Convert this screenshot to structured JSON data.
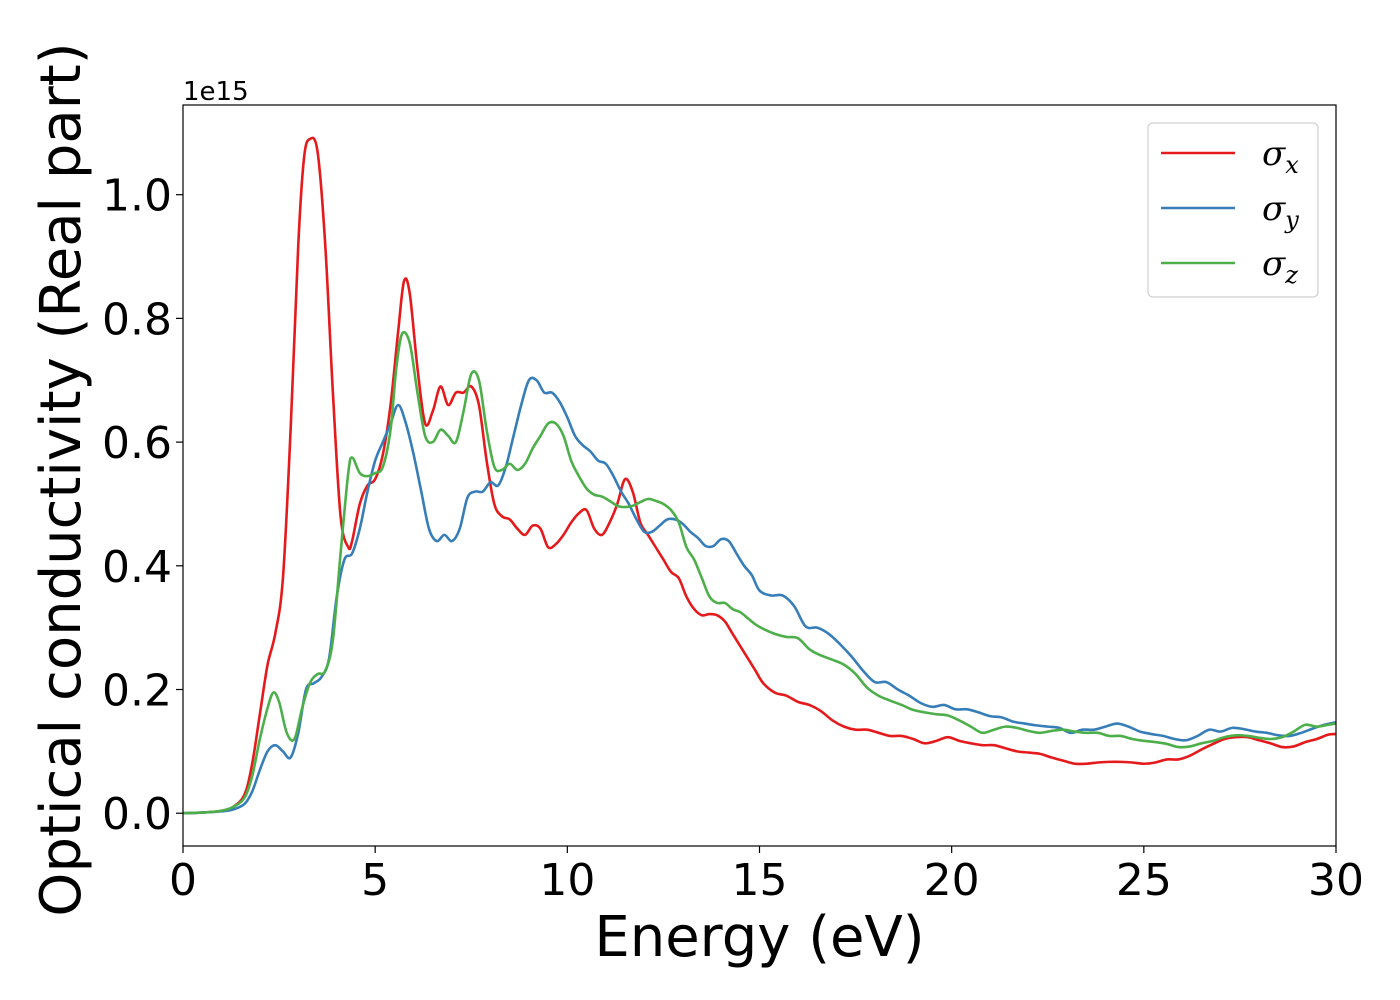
{
  "chart_data": {
    "type": "line",
    "title": "",
    "xlabel": "Energy (eV)",
    "ylabel": "Optical conductivity (Real part)",
    "y_offset_label": "1e15",
    "xlim": [
      0,
      30
    ],
    "ylim": [
      -0.053,
      1.145
    ],
    "y_scale": 1000000000000000.0,
    "x_ticks": [
      0,
      5,
      10,
      15,
      20,
      25,
      30
    ],
    "x_tick_labels": [
      "0",
      "5",
      "10",
      "15",
      "20",
      "25",
      "30"
    ],
    "y_ticks": [
      0.0,
      0.2,
      0.4,
      0.6,
      0.8,
      1.0
    ],
    "y_tick_labels": [
      "0.0",
      "0.2",
      "0.4",
      "0.6",
      "0.8",
      "1.0"
    ],
    "grid": false,
    "legend_position": "top-right",
    "series": [
      {
        "name": "σx",
        "symbol": "σ",
        "subscript": "x",
        "color": "#e41a1c",
        "x": [
          0,
          0.5,
          1.0,
          1.3,
          1.6,
          1.8,
          2.0,
          2.2,
          2.4,
          2.6,
          2.8,
          3.0,
          3.15,
          3.3,
          3.5,
          3.7,
          3.9,
          4.1,
          4.3,
          4.4,
          4.6,
          4.8,
          5.0,
          5.2,
          5.4,
          5.6,
          5.75,
          5.9,
          6.1,
          6.3,
          6.5,
          6.7,
          6.9,
          7.1,
          7.3,
          7.5,
          7.7,
          7.9,
          8.1,
          8.3,
          8.5,
          8.7,
          8.9,
          9.1,
          9.3,
          9.5,
          9.7,
          9.9,
          10.1,
          10.3,
          10.5,
          10.7,
          10.9,
          11.1,
          11.3,
          11.5,
          11.7,
          11.9,
          12.1,
          12.3,
          12.5,
          12.7,
          12.9,
          13.1,
          13.3,
          13.5,
          13.7,
          13.9,
          14.1,
          14.3,
          14.5,
          14.7,
          14.9,
          15.1,
          15.4,
          15.7,
          16.0,
          16.3,
          16.6,
          16.9,
          17.2,
          17.5,
          17.8,
          18.1,
          18.4,
          18.7,
          19.0,
          19.3,
          19.6,
          19.9,
          20.2,
          20.5,
          20.8,
          21.1,
          21.4,
          21.7,
          22.0,
          22.3,
          22.6,
          22.9,
          23.2,
          23.5,
          23.8,
          24.1,
          24.4,
          24.7,
          25.0,
          25.3,
          25.6,
          25.9,
          26.2,
          26.5,
          26.8,
          27.1,
          27.4,
          27.7,
          28.0,
          28.3,
          28.6,
          28.9,
          29.2,
          29.5,
          29.8,
          30.0
        ],
        "y": [
          0.0,
          0.001,
          0.004,
          0.01,
          0.03,
          0.08,
          0.16,
          0.24,
          0.29,
          0.38,
          0.62,
          0.92,
          1.06,
          1.09,
          1.07,
          0.92,
          0.68,
          0.48,
          0.43,
          0.44,
          0.5,
          0.53,
          0.54,
          0.58,
          0.66,
          0.78,
          0.86,
          0.84,
          0.72,
          0.63,
          0.65,
          0.69,
          0.66,
          0.68,
          0.68,
          0.69,
          0.66,
          0.57,
          0.5,
          0.48,
          0.475,
          0.46,
          0.45,
          0.465,
          0.46,
          0.43,
          0.435,
          0.45,
          0.47,
          0.485,
          0.49,
          0.46,
          0.45,
          0.47,
          0.5,
          0.54,
          0.52,
          0.47,
          0.45,
          0.43,
          0.41,
          0.39,
          0.38,
          0.35,
          0.33,
          0.32,
          0.322,
          0.32,
          0.31,
          0.29,
          0.27,
          0.25,
          0.23,
          0.21,
          0.195,
          0.19,
          0.18,
          0.175,
          0.165,
          0.15,
          0.14,
          0.135,
          0.135,
          0.13,
          0.125,
          0.125,
          0.12,
          0.113,
          0.117,
          0.123,
          0.117,
          0.113,
          0.11,
          0.11,
          0.105,
          0.1,
          0.098,
          0.096,
          0.09,
          0.085,
          0.08,
          0.08,
          0.082,
          0.083,
          0.083,
          0.082,
          0.08,
          0.082,
          0.087,
          0.087,
          0.093,
          0.103,
          0.112,
          0.12,
          0.123,
          0.123,
          0.118,
          0.113,
          0.107,
          0.108,
          0.115,
          0.12,
          0.127,
          0.128
        ]
      },
      {
        "name": "σy",
        "symbol": "σ",
        "subscript": "y",
        "color": "#377eb8",
        "x": [
          0,
          0.5,
          1.0,
          1.3,
          1.6,
          1.8,
          2.0,
          2.2,
          2.4,
          2.6,
          2.8,
          3.0,
          3.2,
          3.4,
          3.6,
          3.8,
          4.0,
          4.2,
          4.4,
          4.6,
          4.8,
          5.0,
          5.2,
          5.4,
          5.6,
          5.8,
          6.0,
          6.2,
          6.4,
          6.6,
          6.8,
          7.0,
          7.2,
          7.4,
          7.6,
          7.8,
          8.0,
          8.2,
          8.4,
          8.6,
          8.8,
          9.0,
          9.2,
          9.4,
          9.6,
          9.8,
          10.0,
          10.2,
          10.4,
          10.6,
          10.8,
          11.0,
          11.2,
          11.4,
          11.6,
          11.8,
          12.0,
          12.2,
          12.4,
          12.6,
          12.8,
          13.0,
          13.2,
          13.4,
          13.6,
          13.8,
          14.0,
          14.2,
          14.4,
          14.6,
          14.8,
          15.0,
          15.3,
          15.6,
          15.9,
          16.2,
          16.5,
          16.8,
          17.1,
          17.4,
          17.7,
          18.0,
          18.3,
          18.6,
          18.9,
          19.2,
          19.5,
          19.8,
          20.1,
          20.4,
          20.7,
          21.0,
          21.3,
          21.6,
          21.9,
          22.2,
          22.5,
          22.8,
          23.1,
          23.4,
          23.7,
          24.0,
          24.3,
          24.6,
          24.9,
          25.2,
          25.5,
          25.8,
          26.1,
          26.4,
          26.7,
          27.0,
          27.3,
          27.6,
          27.9,
          28.2,
          28.5,
          28.8,
          29.1,
          29.4,
          29.7,
          30.0
        ],
        "y": [
          0.0,
          0.001,
          0.003,
          0.006,
          0.015,
          0.035,
          0.07,
          0.1,
          0.11,
          0.1,
          0.09,
          0.13,
          0.2,
          0.21,
          0.22,
          0.25,
          0.35,
          0.41,
          0.42,
          0.46,
          0.52,
          0.57,
          0.6,
          0.63,
          0.66,
          0.63,
          0.58,
          0.52,
          0.46,
          0.44,
          0.45,
          0.44,
          0.46,
          0.51,
          0.52,
          0.52,
          0.535,
          0.53,
          0.56,
          0.61,
          0.66,
          0.7,
          0.7,
          0.68,
          0.68,
          0.665,
          0.64,
          0.61,
          0.595,
          0.585,
          0.57,
          0.565,
          0.545,
          0.52,
          0.5,
          0.475,
          0.455,
          0.455,
          0.465,
          0.475,
          0.475,
          0.468,
          0.455,
          0.445,
          0.432,
          0.432,
          0.443,
          0.44,
          0.42,
          0.4,
          0.385,
          0.36,
          0.352,
          0.352,
          0.335,
          0.302,
          0.3,
          0.29,
          0.273,
          0.253,
          0.23,
          0.212,
          0.212,
          0.2,
          0.19,
          0.178,
          0.172,
          0.175,
          0.168,
          0.168,
          0.163,
          0.157,
          0.155,
          0.148,
          0.145,
          0.142,
          0.14,
          0.138,
          0.13,
          0.135,
          0.135,
          0.14,
          0.145,
          0.14,
          0.132,
          0.128,
          0.125,
          0.12,
          0.118,
          0.125,
          0.135,
          0.132,
          0.138,
          0.136,
          0.132,
          0.13,
          0.126,
          0.125,
          0.13,
          0.137,
          0.143,
          0.147
        ]
      },
      {
        "name": "σz",
        "symbol": "σ",
        "subscript": "z",
        "color": "#4daf4a",
        "x": [
          0,
          0.5,
          1.0,
          1.3,
          1.6,
          1.8,
          2.0,
          2.2,
          2.35,
          2.5,
          2.7,
          2.9,
          3.1,
          3.3,
          3.5,
          3.7,
          3.9,
          4.1,
          4.3,
          4.4,
          4.6,
          4.8,
          5.0,
          5.2,
          5.4,
          5.55,
          5.7,
          5.9,
          6.1,
          6.3,
          6.5,
          6.7,
          6.9,
          7.1,
          7.3,
          7.5,
          7.7,
          7.9,
          8.1,
          8.3,
          8.5,
          8.7,
          8.9,
          9.1,
          9.3,
          9.5,
          9.7,
          9.9,
          10.1,
          10.3,
          10.5,
          10.7,
          10.9,
          11.1,
          11.3,
          11.5,
          11.7,
          11.9,
          12.1,
          12.3,
          12.5,
          12.7,
          12.9,
          13.1,
          13.3,
          13.5,
          13.7,
          13.9,
          14.1,
          14.3,
          14.5,
          14.7,
          14.9,
          15.1,
          15.4,
          15.7,
          16.0,
          16.3,
          16.6,
          16.9,
          17.2,
          17.5,
          17.8,
          18.1,
          18.4,
          18.7,
          19.0,
          19.3,
          19.6,
          19.9,
          20.2,
          20.5,
          20.8,
          21.1,
          21.4,
          21.7,
          22.0,
          22.3,
          22.6,
          22.9,
          23.2,
          23.5,
          23.8,
          24.1,
          24.4,
          24.7,
          25.0,
          25.3,
          25.6,
          25.9,
          26.2,
          26.5,
          26.8,
          27.1,
          27.4,
          27.7,
          28.0,
          28.3,
          28.6,
          28.9,
          29.2,
          29.5,
          29.8,
          30.0
        ],
        "y": [
          0.0,
          0.001,
          0.004,
          0.01,
          0.025,
          0.06,
          0.12,
          0.17,
          0.195,
          0.18,
          0.13,
          0.12,
          0.17,
          0.21,
          0.225,
          0.23,
          0.28,
          0.42,
          0.55,
          0.575,
          0.55,
          0.545,
          0.55,
          0.56,
          0.62,
          0.72,
          0.775,
          0.76,
          0.68,
          0.61,
          0.6,
          0.62,
          0.61,
          0.6,
          0.65,
          0.71,
          0.7,
          0.62,
          0.56,
          0.555,
          0.565,
          0.555,
          0.565,
          0.59,
          0.61,
          0.63,
          0.63,
          0.61,
          0.57,
          0.545,
          0.525,
          0.515,
          0.512,
          0.505,
          0.497,
          0.495,
          0.497,
          0.503,
          0.508,
          0.505,
          0.5,
          0.49,
          0.47,
          0.43,
          0.41,
          0.38,
          0.35,
          0.34,
          0.34,
          0.33,
          0.325,
          0.315,
          0.305,
          0.298,
          0.29,
          0.285,
          0.283,
          0.265,
          0.255,
          0.248,
          0.24,
          0.225,
          0.203,
          0.19,
          0.182,
          0.175,
          0.167,
          0.163,
          0.16,
          0.158,
          0.15,
          0.14,
          0.13,
          0.135,
          0.14,
          0.138,
          0.133,
          0.13,
          0.133,
          0.135,
          0.132,
          0.13,
          0.13,
          0.125,
          0.125,
          0.12,
          0.117,
          0.115,
          0.112,
          0.107,
          0.108,
          0.113,
          0.117,
          0.123,
          0.126,
          0.125,
          0.122,
          0.12,
          0.123,
          0.132,
          0.143,
          0.14,
          0.143,
          0.145
        ]
      }
    ]
  }
}
